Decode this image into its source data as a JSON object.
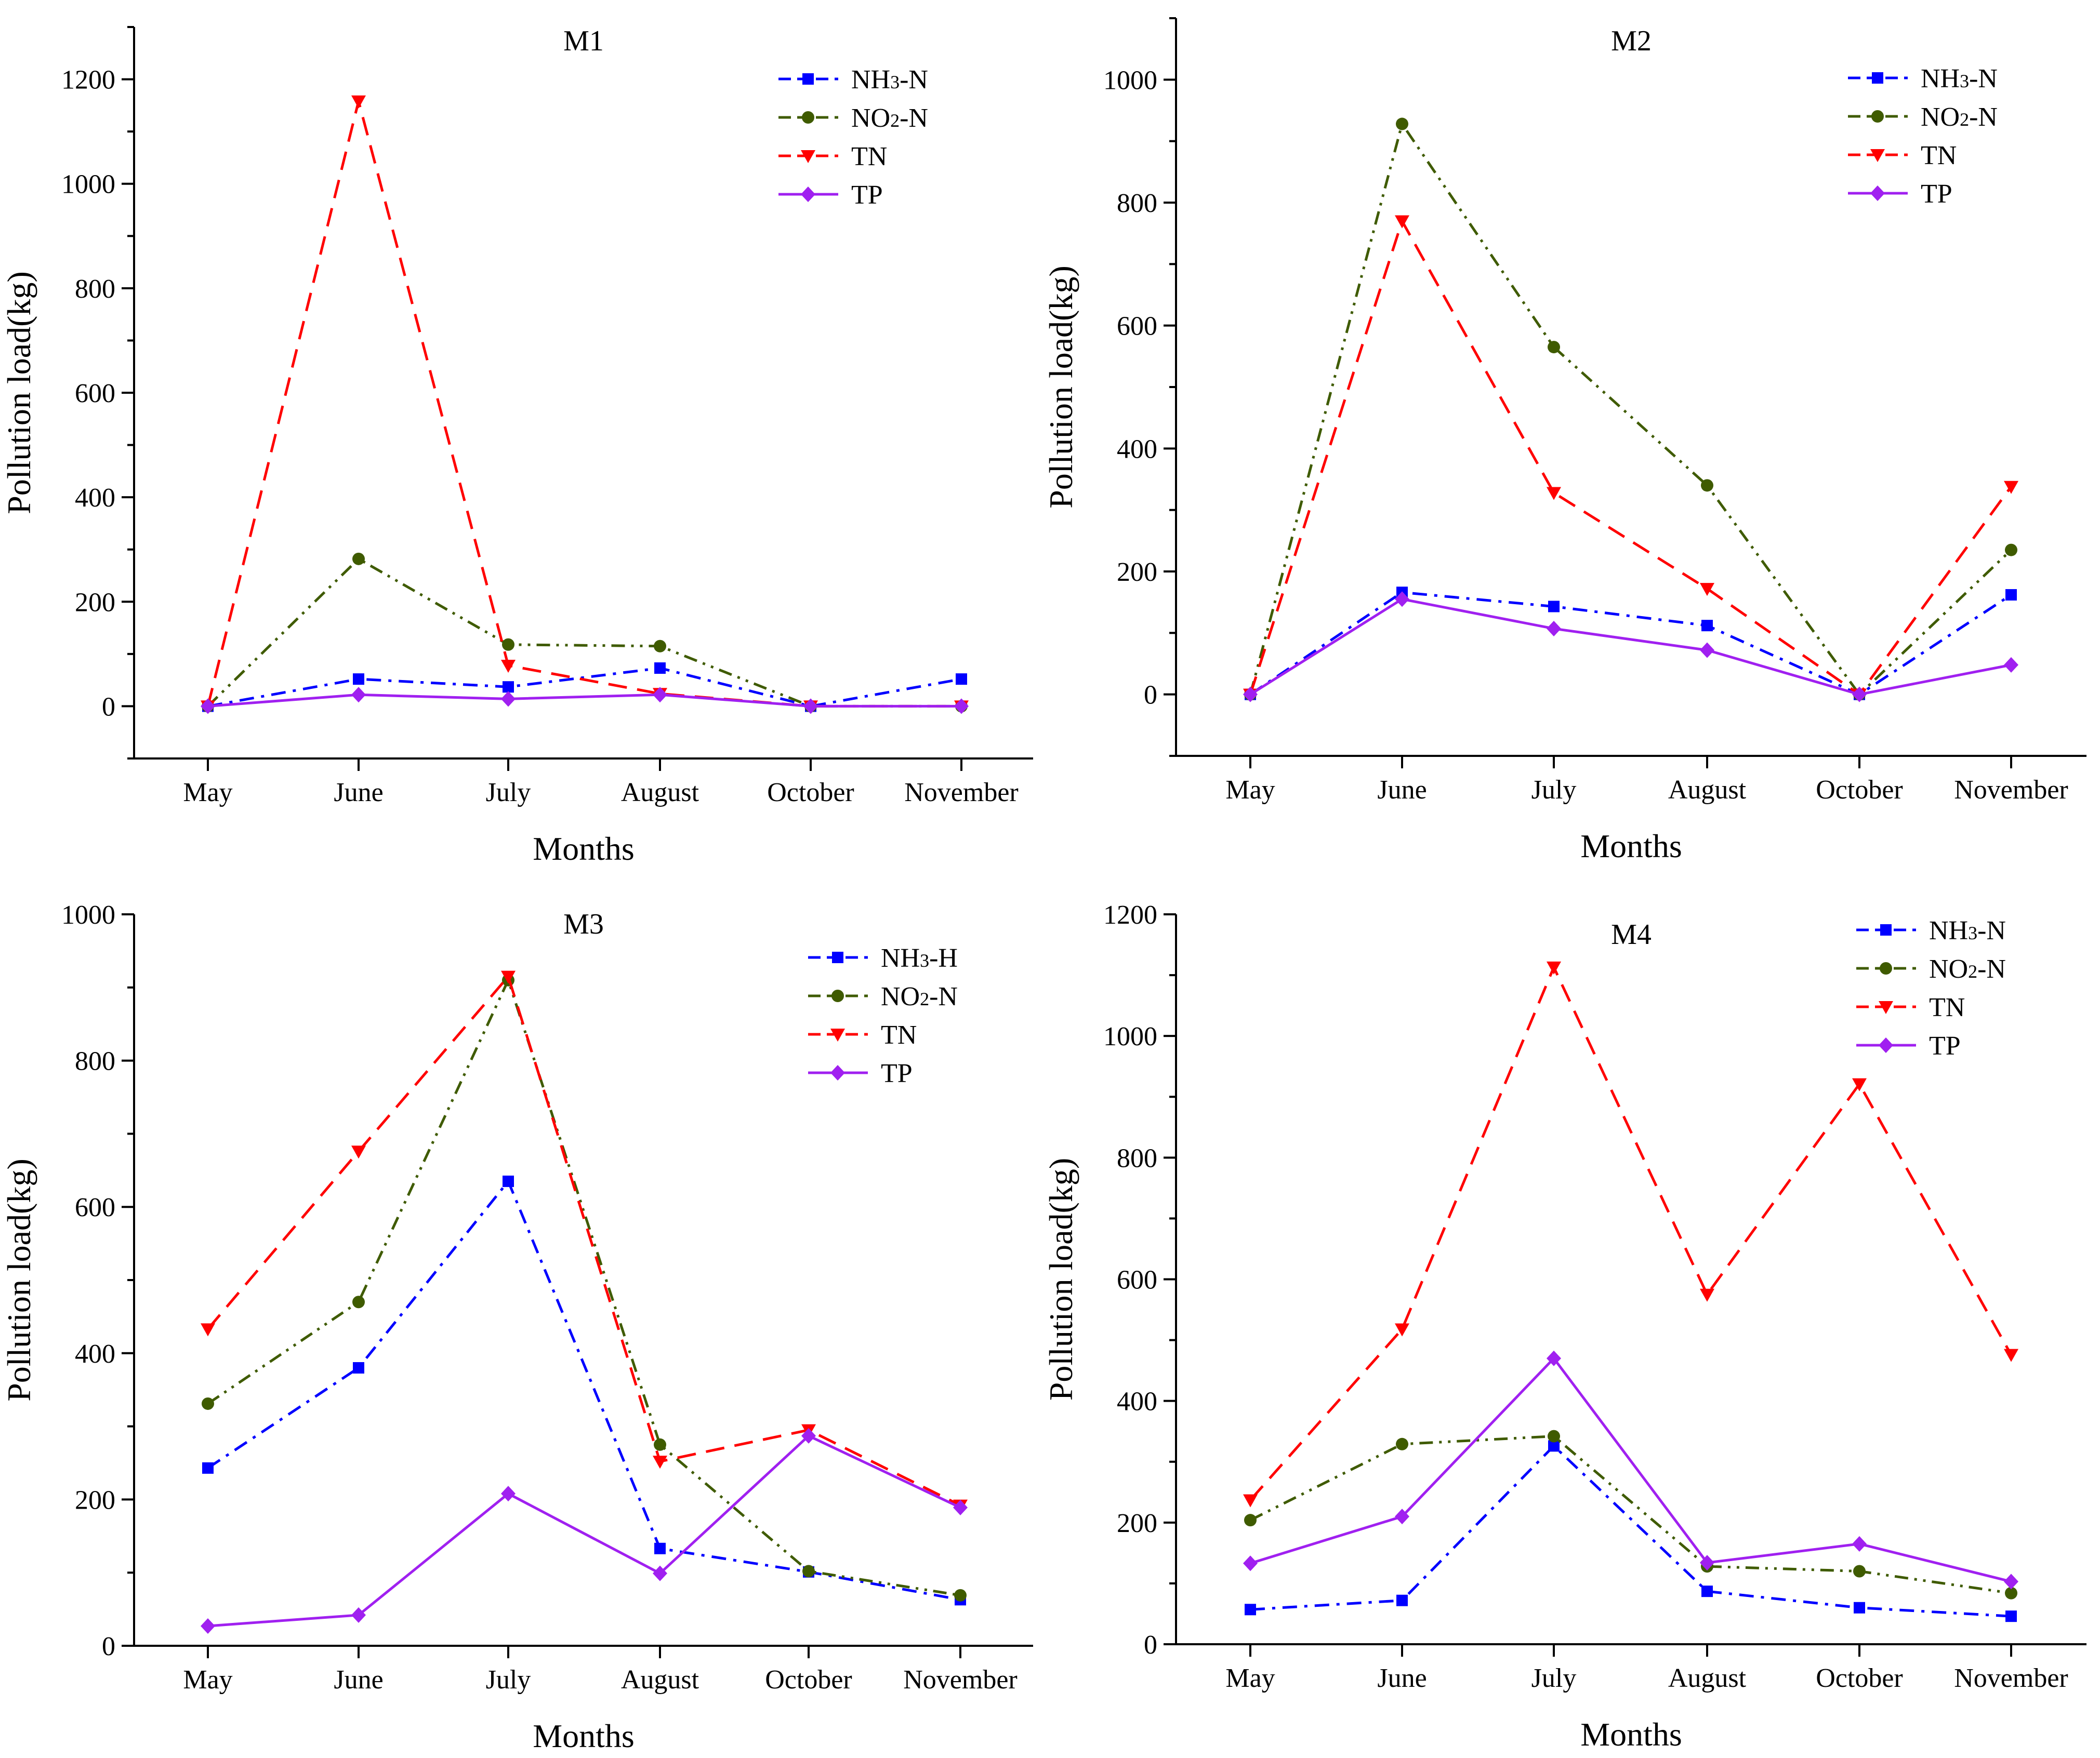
{
  "chart_data": [
    {
      "type": "line",
      "title": "M1",
      "xlabel": "Months",
      "ylabel": "Pollution load(kg)",
      "categories": [
        "May",
        "June",
        "July",
        "August",
        "October",
        "November"
      ],
      "ylim": [
        -100,
        1300
      ],
      "yticks": [
        0,
        200,
        400,
        600,
        800,
        1000,
        1200
      ],
      "grid": false,
      "legend": "top-right",
      "series": [
        {
          "name": "NH3-N",
          "label_main": "NH",
          "label_sub": "3",
          "label_tail": "-N",
          "color": "#0000ff",
          "dash": "dashdot",
          "marker": "square",
          "values": [
            0,
            52,
            37,
            73,
            0,
            52
          ]
        },
        {
          "name": "NO2-N",
          "label_main": "NO",
          "label_sub": "2",
          "label_tail": "-N",
          "color": "#3f5b00",
          "dash": "dashdotdot",
          "marker": "circle",
          "values": [
            0,
            282,
            118,
            115,
            0,
            0
          ]
        },
        {
          "name": "TN",
          "label_main": "TN",
          "label_sub": "",
          "label_tail": "",
          "color": "#ff0000",
          "dash": "dash",
          "marker": "triangle-down",
          "values": [
            0,
            1158,
            78,
            24,
            0,
            0
          ]
        },
        {
          "name": "TP",
          "label_main": "TP",
          "label_sub": "",
          "label_tail": "",
          "color": "#a020f0",
          "dash": "solid",
          "marker": "diamond",
          "values": [
            0,
            22,
            14,
            22,
            0,
            0
          ]
        }
      ]
    },
    {
      "type": "line",
      "title": "M2",
      "xlabel": "Months",
      "ylabel": "Pollution load(kg)",
      "categories": [
        "May",
        "June",
        "July",
        "August",
        "October",
        "November"
      ],
      "ylim": [
        -100,
        1100
      ],
      "yticks": [
        0,
        200,
        400,
        600,
        800,
        1000
      ],
      "grid": false,
      "legend": "top-right",
      "series": [
        {
          "name": "NH3-N",
          "label_main": "NH",
          "label_sub": "3",
          "label_tail": "-N",
          "color": "#0000ff",
          "dash": "dashdot",
          "marker": "square",
          "values": [
            0,
            166,
            143,
            112,
            0,
            162
          ]
        },
        {
          "name": "NO2-N",
          "label_main": "NO",
          "label_sub": "2",
          "label_tail": "-N",
          "color": "#3f5b00",
          "dash": "dashdotdot",
          "marker": "circle",
          "values": [
            0,
            928,
            565,
            340,
            0,
            235
          ]
        },
        {
          "name": "TN",
          "label_main": "TN",
          "label_sub": "",
          "label_tail": "",
          "color": "#ff0000",
          "dash": "dash",
          "marker": "triangle-down",
          "values": [
            0,
            770,
            328,
            172,
            0,
            338
          ]
        },
        {
          "name": "TP",
          "label_main": "TP",
          "label_sub": "",
          "label_tail": "",
          "color": "#a020f0",
          "dash": "solid",
          "marker": "diamond",
          "values": [
            0,
            155,
            107,
            72,
            0,
            48
          ]
        }
      ]
    },
    {
      "type": "line",
      "title": "M3",
      "xlabel": "Months",
      "ylabel": "Pollution load(kg)",
      "categories": [
        "May",
        "June",
        "July",
        "August",
        "October",
        "November"
      ],
      "ylim": [
        0,
        1000
      ],
      "yticks": [
        0,
        200,
        400,
        600,
        800,
        1000
      ],
      "grid": false,
      "legend": "top-right",
      "series": [
        {
          "name": "NH3-H",
          "label_main": "NH",
          "label_sub": "3",
          "label_tail": "-H",
          "color": "#0000ff",
          "dash": "dashdot",
          "marker": "square",
          "values": [
            243,
            380,
            635,
            133,
            101,
            63
          ]
        },
        {
          "name": "NO2-N",
          "label_main": "NO",
          "label_sub": "2",
          "label_tail": "-N",
          "color": "#3f5b00",
          "dash": "dashdotdot",
          "marker": "circle",
          "values": [
            331,
            470,
            910,
            275,
            102,
            69
          ]
        },
        {
          "name": "TN",
          "label_main": "TN",
          "label_sub": "",
          "label_tail": "",
          "color": "#ff0000",
          "dash": "dash",
          "marker": "triangle-down",
          "values": [
            433,
            676,
            915,
            252,
            295,
            192
          ]
        },
        {
          "name": "TP",
          "label_main": "TP",
          "label_sub": "",
          "label_tail": "",
          "color": "#a020f0",
          "dash": "solid",
          "marker": "diamond",
          "values": [
            27,
            42,
            208,
            99,
            287,
            189
          ]
        }
      ]
    },
    {
      "type": "line",
      "title": "M4",
      "xlabel": "Months",
      "ylabel": "Pollution load(kg)",
      "categories": [
        "May",
        "June",
        "July",
        "August",
        "October",
        "November"
      ],
      "ylim": [
        0,
        1200
      ],
      "yticks": [
        0,
        200,
        400,
        600,
        800,
        1000,
        1200
      ],
      "grid": false,
      "legend": "top-right",
      "series": [
        {
          "name": "NH3-N",
          "label_main": "NH",
          "label_sub": "3",
          "label_tail": "-N",
          "color": "#0000ff",
          "dash": "dashdot",
          "marker": "square",
          "values": [
            57,
            72,
            326,
            87,
            60,
            46
          ]
        },
        {
          "name": "NO2-N",
          "label_main": "NO",
          "label_sub": "2",
          "label_tail": "-N",
          "color": "#3f5b00",
          "dash": "dashdotdot",
          "marker": "circle",
          "values": [
            204,
            329,
            342,
            128,
            120,
            84
          ]
        },
        {
          "name": "TN",
          "label_main": "TN",
          "label_sub": "",
          "label_tail": "",
          "color": "#ff0000",
          "dash": "dash",
          "marker": "triangle-down",
          "values": [
            237,
            518,
            1113,
            575,
            921,
            476
          ]
        },
        {
          "name": "TP",
          "label_main": "TP",
          "label_sub": "",
          "label_tail": "",
          "color": "#a020f0",
          "dash": "solid",
          "marker": "diamond",
          "values": [
            133,
            210,
            470,
            134,
            165,
            103
          ]
        }
      ]
    }
  ]
}
